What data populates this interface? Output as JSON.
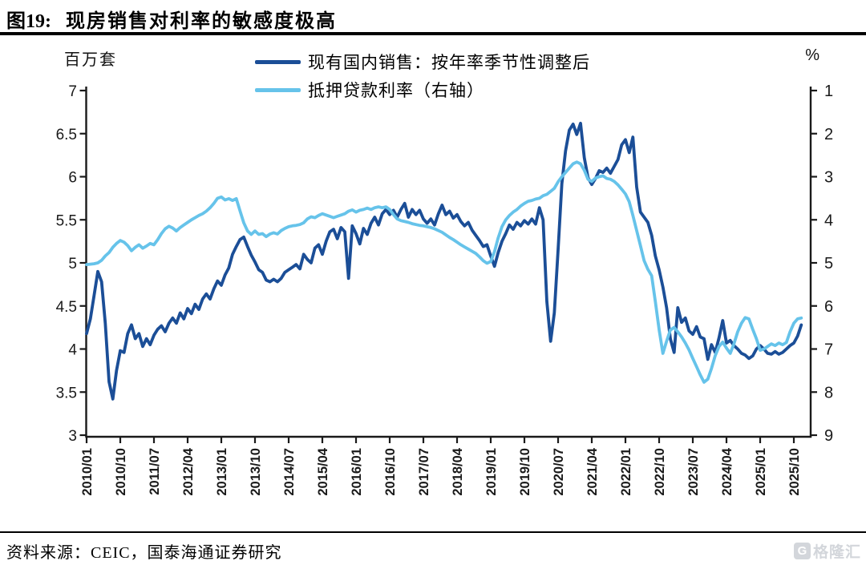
{
  "title": {
    "prefix": "图19:",
    "text": "现房销售对利率的敏感度极高"
  },
  "footer": {
    "source": "资料来源：CEIC，国泰海通证券研究"
  },
  "watermark": {
    "badge": "G",
    "text": "格隆汇"
  },
  "chart_data": {
    "type": "line",
    "title": "现房销售对利率的敏感度极高",
    "legend_position": "top",
    "grid": false,
    "left_axis": {
      "unit": "百万套",
      "min": 3,
      "max": 7,
      "tick_labels": [
        "7",
        "6.5",
        "6",
        "5.5",
        "5",
        "4.5",
        "4",
        "3.5",
        "3"
      ],
      "tick_values": [
        7,
        6.5,
        6,
        5.5,
        5,
        4.5,
        4,
        3.5,
        3
      ]
    },
    "right_axis": {
      "unit": "%",
      "min": 1,
      "max": 9,
      "inverted": true,
      "tick_labels": [
        "1",
        "2",
        "3",
        "4",
        "5",
        "6",
        "7",
        "8",
        "9"
      ],
      "tick_values": [
        1,
        2,
        3,
        4,
        5,
        6,
        7,
        8,
        9
      ]
    },
    "x_start": "2010/01",
    "x_months": 192,
    "x_tick_every_months": 9,
    "x_tick_labels": [
      "2010/01",
      "2010/10",
      "2011/07",
      "2012/04",
      "2013/01",
      "2013/10",
      "2014/07",
      "2015/04",
      "2016/01",
      "2016/10",
      "2017/07",
      "2018/04",
      "2019/01",
      "2019/10",
      "2020/07",
      "2021/04",
      "2022/01",
      "2022/10",
      "2023/07",
      "2024/04",
      "2025/01",
      "2025/10"
    ],
    "series": [
      {
        "name": "现有国内销售：按年率季节性调整后",
        "axis": "left",
        "color": "#1b4e97",
        "values": [
          4.18,
          4.35,
          4.62,
          4.9,
          4.78,
          4.3,
          3.62,
          3.42,
          3.75,
          3.98,
          3.96,
          4.18,
          4.28,
          4.12,
          4.18,
          4.03,
          4.12,
          4.05,
          4.16,
          4.23,
          4.27,
          4.2,
          4.3,
          4.36,
          4.3,
          4.42,
          4.35,
          4.47,
          4.41,
          4.52,
          4.46,
          4.58,
          4.64,
          4.58,
          4.7,
          4.79,
          4.74,
          4.86,
          4.94,
          5.1,
          5.19,
          5.27,
          5.3,
          5.19,
          5.09,
          5.01,
          4.92,
          4.89,
          4.8,
          4.78,
          4.81,
          4.78,
          4.82,
          4.89,
          4.92,
          4.95,
          4.98,
          4.93,
          5.1,
          5.04,
          5.0,
          5.17,
          5.21,
          5.1,
          5.25,
          5.36,
          5.39,
          5.28,
          5.41,
          5.36,
          4.82,
          5.43,
          5.34,
          5.22,
          5.4,
          5.33,
          5.46,
          5.53,
          5.44,
          5.57,
          5.62,
          5.56,
          5.61,
          5.53,
          5.62,
          5.69,
          5.53,
          5.62,
          5.56,
          5.61,
          5.51,
          5.46,
          5.51,
          5.44,
          5.57,
          5.67,
          5.56,
          5.6,
          5.52,
          5.56,
          5.48,
          5.43,
          5.47,
          5.38,
          5.32,
          5.26,
          5.19,
          5.21,
          5.08,
          4.96,
          5.12,
          5.25,
          5.34,
          5.44,
          5.39,
          5.47,
          5.43,
          5.49,
          5.45,
          5.51,
          5.45,
          5.64,
          5.5,
          4.55,
          4.09,
          4.42,
          5.15,
          5.92,
          6.3,
          6.54,
          6.61,
          6.49,
          6.62,
          6.22,
          5.99,
          5.91,
          5.98,
          6.07,
          6.05,
          6.1,
          6.04,
          6.12,
          6.2,
          6.37,
          6.43,
          6.28,
          6.46,
          5.88,
          5.59,
          5.53,
          5.47,
          5.32,
          5.08,
          4.92,
          4.72,
          4.48,
          4.12,
          3.96,
          4.48,
          4.31,
          4.36,
          4.21,
          4.17,
          4.26,
          4.14,
          4.12,
          3.88,
          4.05,
          3.96,
          4.13,
          4.33,
          4.07,
          4.1,
          4.04,
          4.0,
          3.95,
          3.93,
          3.89,
          3.92,
          4.0,
          4.04,
          4.0,
          3.95,
          3.94,
          3.97,
          3.94,
          3.96,
          4.0,
          4.04,
          4.07,
          4.15,
          4.28
        ]
      },
      {
        "name": "抵押贷款利率（右轴）",
        "axis": "right",
        "color": "#66c3ea",
        "values": [
          5.04,
          5.03,
          5.02,
          5.0,
          4.94,
          4.84,
          4.76,
          4.64,
          4.55,
          4.48,
          4.52,
          4.6,
          4.72,
          4.64,
          4.58,
          4.66,
          4.61,
          4.55,
          4.58,
          4.46,
          4.32,
          4.21,
          4.15,
          4.19,
          4.26,
          4.18,
          4.12,
          4.06,
          4.0,
          3.95,
          3.9,
          3.86,
          3.8,
          3.72,
          3.62,
          3.5,
          3.47,
          3.54,
          3.51,
          3.55,
          3.51,
          3.79,
          4.07,
          4.26,
          4.34,
          4.26,
          4.34,
          4.32,
          4.39,
          4.33,
          4.3,
          4.33,
          4.25,
          4.2,
          4.16,
          4.14,
          4.13,
          4.11,
          4.07,
          3.98,
          3.93,
          3.95,
          3.9,
          3.86,
          3.89,
          3.92,
          3.95,
          3.92,
          3.89,
          3.86,
          3.8,
          3.77,
          3.82,
          3.78,
          3.76,
          3.73,
          3.76,
          3.72,
          3.7,
          3.72,
          3.7,
          3.76,
          3.88,
          3.98,
          4.02,
          4.04,
          4.06,
          4.09,
          4.11,
          4.13,
          4.14,
          4.16,
          4.18,
          4.21,
          4.25,
          4.29,
          4.35,
          4.41,
          4.46,
          4.52,
          4.58,
          4.63,
          4.68,
          4.73,
          4.78,
          4.86,
          4.95,
          5.01,
          4.97,
          4.74,
          4.42,
          4.16,
          4.0,
          3.9,
          3.82,
          3.76,
          3.68,
          3.62,
          3.57,
          3.55,
          3.52,
          3.5,
          3.44,
          3.41,
          3.34,
          3.27,
          3.12,
          3.0,
          2.9,
          2.8,
          2.7,
          2.66,
          2.7,
          2.85,
          3.06,
          3.11,
          3.03,
          3.0,
          2.98,
          3.04,
          3.06,
          3.11,
          3.19,
          3.29,
          3.4,
          3.58,
          3.9,
          4.25,
          4.6,
          4.95,
          5.15,
          5.3,
          5.9,
          6.55,
          7.1,
          6.82,
          6.56,
          6.5,
          6.6,
          6.72,
          6.86,
          7.02,
          7.22,
          7.41,
          7.6,
          7.77,
          7.7,
          7.45,
          7.15,
          6.94,
          6.84,
          6.98,
          7.1,
          6.88,
          6.6,
          6.4,
          6.27,
          6.3,
          6.54,
          6.76,
          7.03,
          7.0,
          6.94,
          6.88,
          6.92,
          6.86,
          6.9,
          6.85,
          6.6,
          6.4,
          6.3,
          6.28
        ]
      }
    ]
  }
}
